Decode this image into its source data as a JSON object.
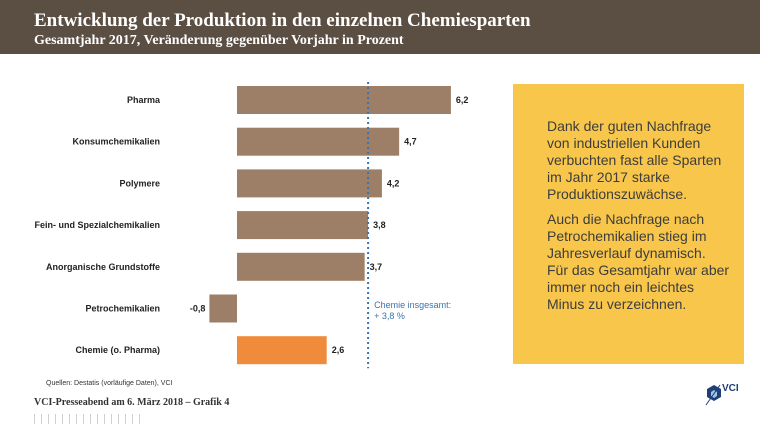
{
  "header": {
    "title": "Entwicklung der Produktion in den einzelnen Chemiesparten",
    "subtitle": "Gesamtjahr 2017, Veränderung gegenüber Vorjahr in Prozent"
  },
  "chart_data": {
    "type": "bar",
    "orientation": "horizontal",
    "categories": [
      "Pharma",
      "Konsumchemikalien",
      "Polymere",
      "Fein- und Spezialchemikalien",
      "Anorganische Grundstoffe",
      "Petrochemikalien",
      "Chemie (o. Pharma)"
    ],
    "values": [
      6.2,
      4.7,
      4.2,
      3.8,
      3.7,
      -0.8,
      2.6
    ],
    "value_labels": [
      "6,2",
      "4,7",
      "4,2",
      "3,8",
      "3,7",
      "-0,8",
      "2,6"
    ],
    "bar_colors": [
      "#9c7f66",
      "#9c7f66",
      "#9c7f66",
      "#9c7f66",
      "#9c7f66",
      "#9c7f66",
      "#f08b3c"
    ],
    "reference_line": {
      "value": 3.8,
      "label_lines": [
        "Chemie insgesamt:",
        "+ 3,8 %"
      ],
      "color": "#3a73ad"
    },
    "xlim": [
      -0.8,
      6.2
    ],
    "grid": false,
    "legend": "none"
  },
  "info_box": {
    "paragraph1": "Dank der guten Nachfrage von industriellen Kunden verbuchten fast alle Sparten im Jahr 2017 starke Produktionszuwächse.",
    "paragraph2": "Auch die Nachfrage nach Petrochemikalien stieg im Jahresverlauf dynamisch. Für das Gesamtjahr war aber immer noch ein leichtes Minus zu verzeichnen.",
    "background": "#f8c64a"
  },
  "source": "Quellen: Destatis (vorläufige Daten), VCI",
  "footer": "VCI-Presseabend am 6. März 2018 – Grafik 4",
  "logo": {
    "text": "VCI",
    "icon": "vci-hexagon-logo-icon"
  },
  "colors": {
    "header_bg": "#5b4f44",
    "bar": "#9c7f66",
    "highlight_bar": "#f08b3c"
  }
}
